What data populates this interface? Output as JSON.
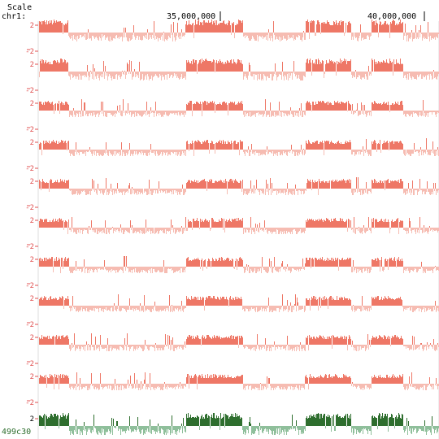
{
  "ruler": {
    "scale_label": "Scale",
    "chrom_label": "chr1:",
    "positions": [
      "35,000,000",
      "40,000,000"
    ]
  },
  "tracks": [
    {
      "name": "track-1",
      "axis_max": "2",
      "axis_min": "-2",
      "color": "#ee7766",
      "neg_color": "#f6bcb2"
    },
    {
      "name": "track-2",
      "axis_max": "2",
      "axis_min": "-2",
      "color": "#ee7766",
      "neg_color": "#f6bcb2"
    },
    {
      "name": "track-3",
      "axis_max": "2",
      "axis_min": "-2",
      "color": "#ee7766",
      "neg_color": "#f6bcb2"
    },
    {
      "name": "track-4",
      "axis_max": "2",
      "axis_min": "-2",
      "color": "#ee7766",
      "neg_color": "#f6bcb2"
    },
    {
      "name": "track-5",
      "axis_max": "2",
      "axis_min": "-2",
      "color": "#ee7766",
      "neg_color": "#f6bcb2"
    },
    {
      "name": "track-6",
      "axis_max": "2",
      "axis_min": "-2",
      "color": "#ee7766",
      "neg_color": "#f6bcb2"
    },
    {
      "name": "track-7",
      "axis_max": "2",
      "axis_min": "-2",
      "color": "#ee7766",
      "neg_color": "#f6bcb2"
    },
    {
      "name": "track-8",
      "axis_max": "2",
      "axis_min": "-2",
      "color": "#ee7766",
      "neg_color": "#f6bcb2"
    },
    {
      "name": "track-9",
      "axis_max": "2",
      "axis_min": "-2",
      "color": "#ee7766",
      "neg_color": "#f6bcb2"
    },
    {
      "name": "track-10",
      "axis_max": "2",
      "axis_min": "-2",
      "color": "#ee7766",
      "neg_color": "#f6bcb2"
    },
    {
      "name": "track-11",
      "label": "499c30",
      "axis_max": "2",
      "axis_min": "-2",
      "color": "#2e6e2e",
      "neg_color": "#8fbf9b"
    }
  ],
  "colors": {
    "axis_tick": "#e05050",
    "grid": "#dddddd",
    "label_green": "#2e6e2e"
  }
}
